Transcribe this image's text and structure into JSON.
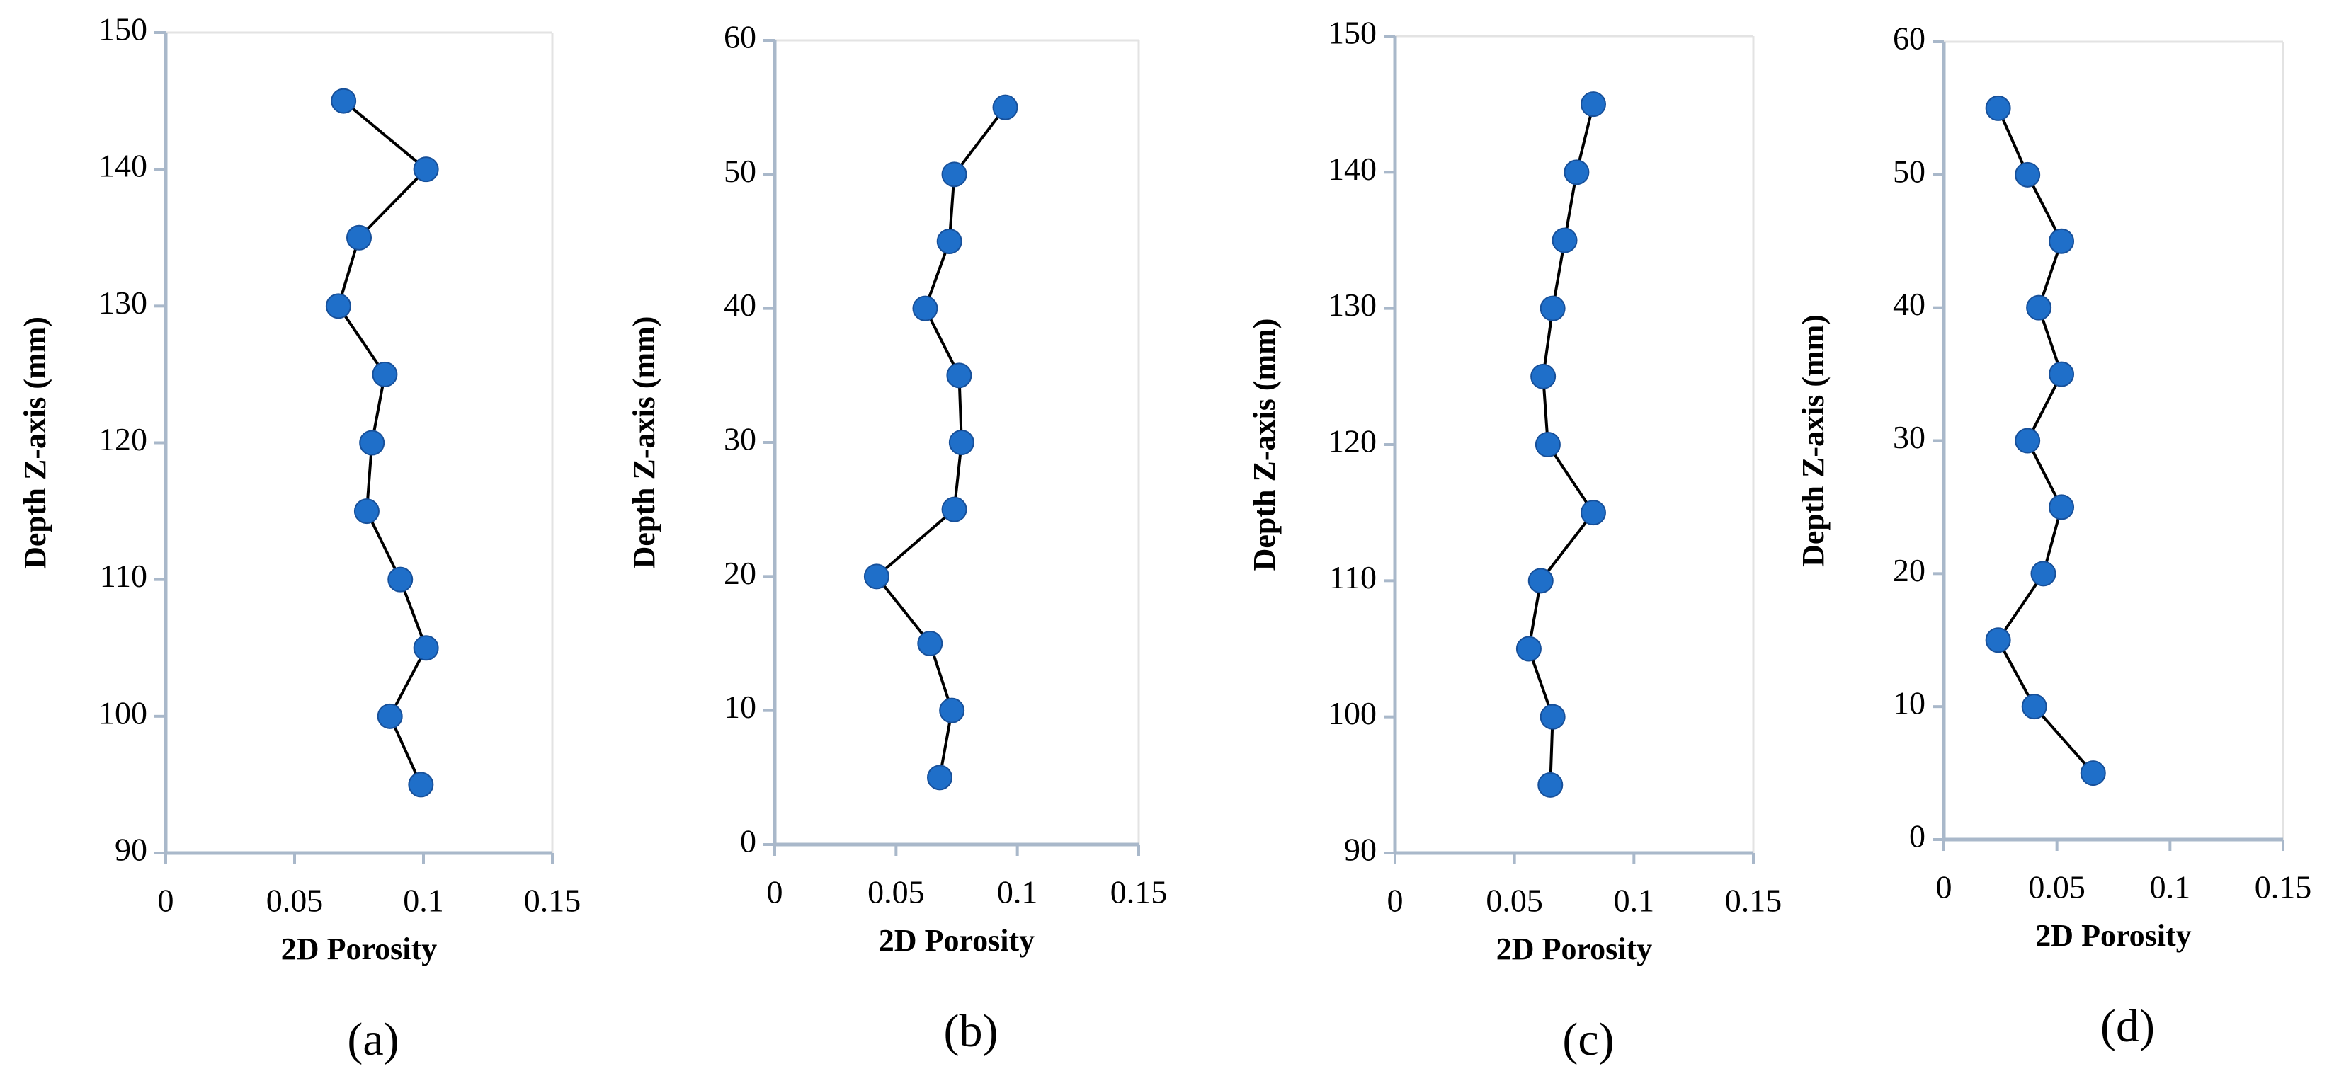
{
  "chart_data": [
    {
      "type": "line",
      "panel_label": "(a)",
      "x_label": "2D Porosity",
      "y_label": "Depth Z-axis (mm)",
      "xlim": [
        0,
        0.15
      ],
      "xticks": [
        0,
        0.05,
        0.1,
        0.15
      ],
      "ylim": [
        90,
        150
      ],
      "yticks": [
        90,
        100,
        110,
        120,
        130,
        140,
        150
      ],
      "line_color": "#000000",
      "series": [
        {
          "color": "#1f6fc9",
          "x": [
            0.069,
            0.101,
            0.075,
            0.067,
            0.085,
            0.08,
            0.078,
            0.091,
            0.101,
            0.087,
            0.099
          ],
          "values": [
            145,
            140,
            135,
            130,
            125,
            120,
            115,
            110,
            105,
            100,
            95
          ]
        }
      ]
    },
    {
      "type": "line",
      "panel_label": "(b)",
      "x_label": "2D Porosity",
      "y_label": "Depth Z-axis (mm)",
      "xlim": [
        0,
        0.15
      ],
      "xticks": [
        0,
        0.05,
        0.1,
        0.15
      ],
      "ylim": [
        0,
        60
      ],
      "yticks": [
        0,
        10,
        20,
        30,
        40,
        50,
        60
      ],
      "line_color": "#000000",
      "series": [
        {
          "color": "#1f6fc9",
          "x": [
            0.095,
            0.074,
            0.072,
            0.062,
            0.076,
            0.077,
            0.074,
            0.042,
            0.064,
            0.073,
            0.068
          ],
          "values": [
            55,
            50,
            45,
            40,
            35,
            30,
            25,
            20,
            15,
            10,
            5
          ]
        }
      ]
    },
    {
      "type": "line",
      "panel_label": "(c)",
      "x_label": "2D Porosity",
      "y_label": "Depth Z-axis (mm)",
      "xlim": [
        0,
        0.15
      ],
      "xticks": [
        0,
        0.05,
        0.1,
        0.15
      ],
      "ylim": [
        90,
        150
      ],
      "yticks": [
        90,
        100,
        110,
        120,
        130,
        140,
        150
      ],
      "line_color": "#000000",
      "series": [
        {
          "color": "#1f6fc9",
          "x": [
            0.083,
            0.076,
            0.071,
            0.066,
            0.062,
            0.064,
            0.083,
            0.061,
            0.056,
            0.066,
            0.065
          ],
          "values": [
            145,
            140,
            135,
            130,
            125,
            120,
            115,
            110,
            105,
            100,
            95
          ]
        }
      ]
    },
    {
      "type": "line",
      "panel_label": "(d)",
      "x_label": "2D Porosity",
      "y_label": "Depth Z-axis (mm)",
      "xlim": [
        0,
        0.15
      ],
      "xticks": [
        0,
        0.05,
        0.1,
        0.15
      ],
      "ylim": [
        0,
        60
      ],
      "yticks": [
        0,
        10,
        20,
        30,
        40,
        50,
        60
      ],
      "line_color": "#000000",
      "series": [
        {
          "color": "#1f6fc9",
          "x": [
            0.024,
            0.037,
            0.052,
            0.042,
            0.052,
            0.037,
            0.052,
            0.044,
            0.024,
            0.04,
            0.066
          ],
          "values": [
            55,
            50,
            45,
            40,
            35,
            30,
            25,
            20,
            15,
            10,
            5
          ]
        }
      ]
    }
  ]
}
